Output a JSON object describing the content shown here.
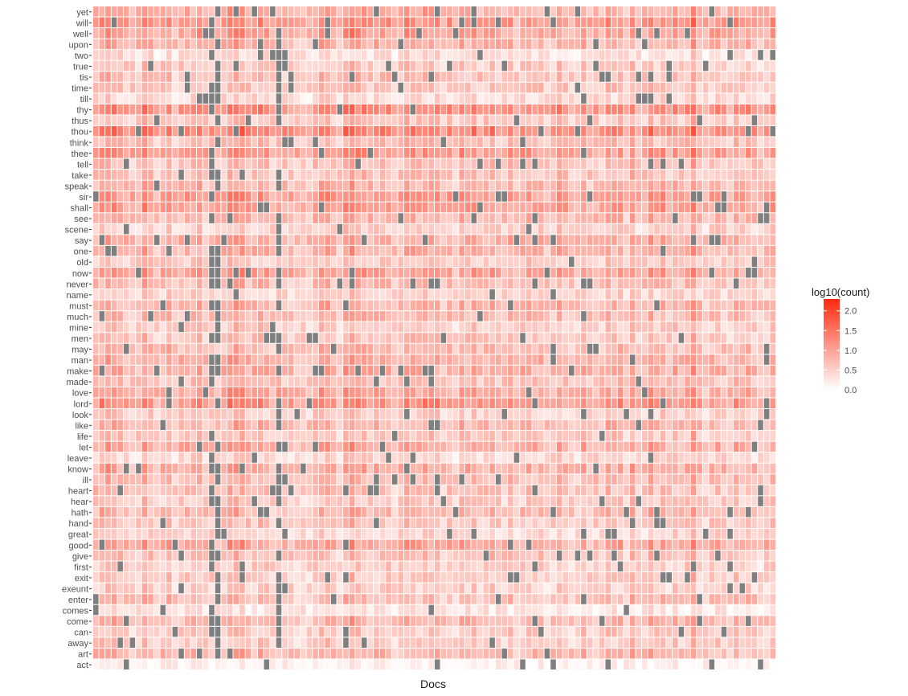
{
  "chart_data": {
    "type": "heatmap",
    "title": "",
    "xlabel": "Docs",
    "ylabel": "",
    "x_tick_labels_shown": false,
    "n_docs": 112,
    "rows_bottom_to_top": [
      "act",
      "art",
      "away",
      "can",
      "come",
      "comes",
      "enter",
      "exeunt",
      "exit",
      "first",
      "give",
      "good",
      "great",
      "hand",
      "hath",
      "hear",
      "heart",
      "ill",
      "know",
      "leave",
      "let",
      "life",
      "like",
      "look",
      "lord",
      "love",
      "made",
      "make",
      "man",
      "may",
      "men",
      "mine",
      "much",
      "must",
      "name",
      "never",
      "now",
      "old",
      "one",
      "say",
      "scene",
      "see",
      "shall",
      "sir",
      "speak",
      "take",
      "tell",
      "thee",
      "think",
      "thou",
      "thus",
      "thy",
      "till",
      "time",
      "tis",
      "true",
      "two",
      "upon",
      "well",
      "will",
      "yet"
    ],
    "row_mean_log10_count": {
      "act": 0.12,
      "art": 0.75,
      "away": 0.55,
      "can": 0.55,
      "come": 0.75,
      "comes": 0.25,
      "enter": 0.7,
      "exeunt": 0.5,
      "exit": 0.55,
      "first": 0.5,
      "give": 0.65,
      "good": 0.9,
      "great": 0.45,
      "hand": 0.6,
      "hath": 0.75,
      "hear": 0.55,
      "heart": 0.65,
      "ill": 0.7,
      "know": 0.85,
      "leave": 0.45,
      "let": 0.85,
      "life": 0.6,
      "like": 0.75,
      "look": 0.5,
      "lord": 1.1,
      "love": 0.9,
      "made": 0.65,
      "make": 0.85,
      "man": 0.8,
      "may": 0.7,
      "men": 0.6,
      "mine": 0.55,
      "much": 0.7,
      "must": 0.75,
      "name": 0.5,
      "never": 0.7,
      "now": 0.95,
      "old": 0.55,
      "one": 0.8,
      "say": 0.85,
      "scene": 0.5,
      "see": 0.75,
      "shall": 1.0,
      "sir": 1.0,
      "speak": 0.75,
      "take": 0.65,
      "tell": 0.65,
      "thee": 1.05,
      "think": 0.65,
      "thou": 1.25,
      "thus": 0.6,
      "thy": 1.15,
      "till": 0.4,
      "time": 0.6,
      "tis": 0.65,
      "true": 0.55,
      "two": 0.35,
      "upon": 0.8,
      "well": 0.95,
      "will": 1.1,
      "yet": 0.85
    },
    "missing_value_color": "#7f7f7f",
    "mostly_missing_docs_approx": [
      19,
      20,
      30
    ],
    "legend": {
      "title": "log10(count)",
      "position": "right",
      "scale_low_color": "#ffffff",
      "scale_high_color": "#ff2a0f",
      "range": [
        0,
        2.3
      ],
      "ticks": [
        {
          "value": 2.0,
          "label": "2.0"
        },
        {
          "value": 1.5,
          "label": "1.5"
        },
        {
          "value": 1.0,
          "label": "1.0"
        },
        {
          "value": 0.5,
          "label": "0.5"
        },
        {
          "value": 0.0,
          "label": "0.0"
        }
      ]
    },
    "grid": false
  }
}
